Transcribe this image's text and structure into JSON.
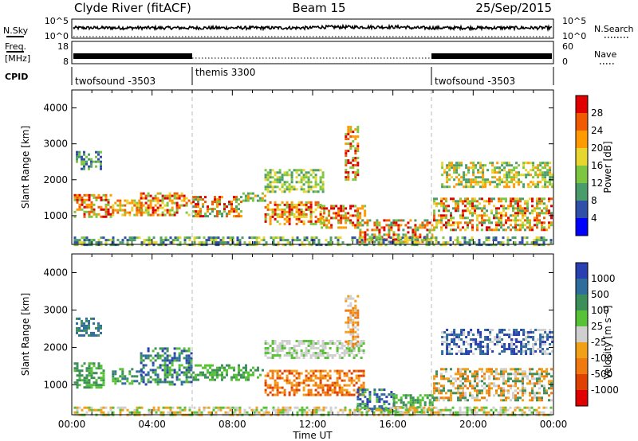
{
  "header": {
    "station": "Clyde River (fitACF)",
    "beam": "Beam 15",
    "date": "25/Sep/2015"
  },
  "strips": {
    "nsky_label": "N.Sky",
    "freq_label_1": "Freq.",
    "freq_label_2": "[MHz]",
    "cpid_label": "CPID",
    "nsky_ticks": [
      "10^5",
      "10^0"
    ],
    "freq_ticks": [
      "18",
      "8"
    ],
    "nsearch_label": "N.Search",
    "nave_label": "Nave",
    "nsearch_ticks": [
      "10^5",
      "10^0"
    ],
    "nave_ticks": [
      "60",
      "0"
    ],
    "cpid_segments": [
      "twofsound -3503",
      "themis 3300",
      "twofsound -3503"
    ]
  },
  "colors": {
    "power_scale": [
      "#0000ff",
      "#2f4fa8",
      "#4a9d6a",
      "#7ec63f",
      "#e8d630",
      "#ff9a00",
      "#f05a00",
      "#e00000"
    ],
    "velocity_scale": [
      "#2a3fb0",
      "#2f6d9c",
      "#3d8f5a",
      "#57c235",
      "#cfcfcf",
      "#f2a018",
      "#f07a10",
      "#e04000",
      "#e00000"
    ]
  },
  "chart_data": [
    {
      "type": "heatmap",
      "title": "Power",
      "quantity": "Power",
      "ylabel": "Slant Range [km]",
      "xlabel": "Time UT",
      "x_ticks": [
        "00:00",
        "04:00",
        "08:00",
        "12:00",
        "16:00",
        "20:00",
        "00:00"
      ],
      "y_ticks": [
        "1000",
        "2000",
        "3000",
        "4000"
      ],
      "ylim": [
        200,
        4500
      ],
      "colorbar_label": "Power [dB]",
      "colorbar_ticks": [
        "4",
        "8",
        "12",
        "16",
        "20",
        "24",
        "28"
      ],
      "grid": "dashed vertical lines at 06:00 and 18:00",
      "cells": []
    },
    {
      "type": "heatmap",
      "title": "Velocity",
      "quantity": "Velocity",
      "ylabel": "Slant Range [km]",
      "xlabel": "Time UT",
      "x_ticks": [
        "00:00",
        "04:00",
        "08:00",
        "12:00",
        "16:00",
        "20:00",
        "00:00"
      ],
      "y_ticks": [
        "1000",
        "2000",
        "3000",
        "4000"
      ],
      "ylim": [
        200,
        4500
      ],
      "colorbar_label": "Velocity [m s⁻¹]",
      "colorbar_ticks": [
        "1000",
        "500",
        "100",
        "25",
        "-25",
        "-100",
        "-500",
        "-1000"
      ],
      "grid": "dashed vertical lines at 06:00 and 18:00",
      "cells": []
    }
  ]
}
